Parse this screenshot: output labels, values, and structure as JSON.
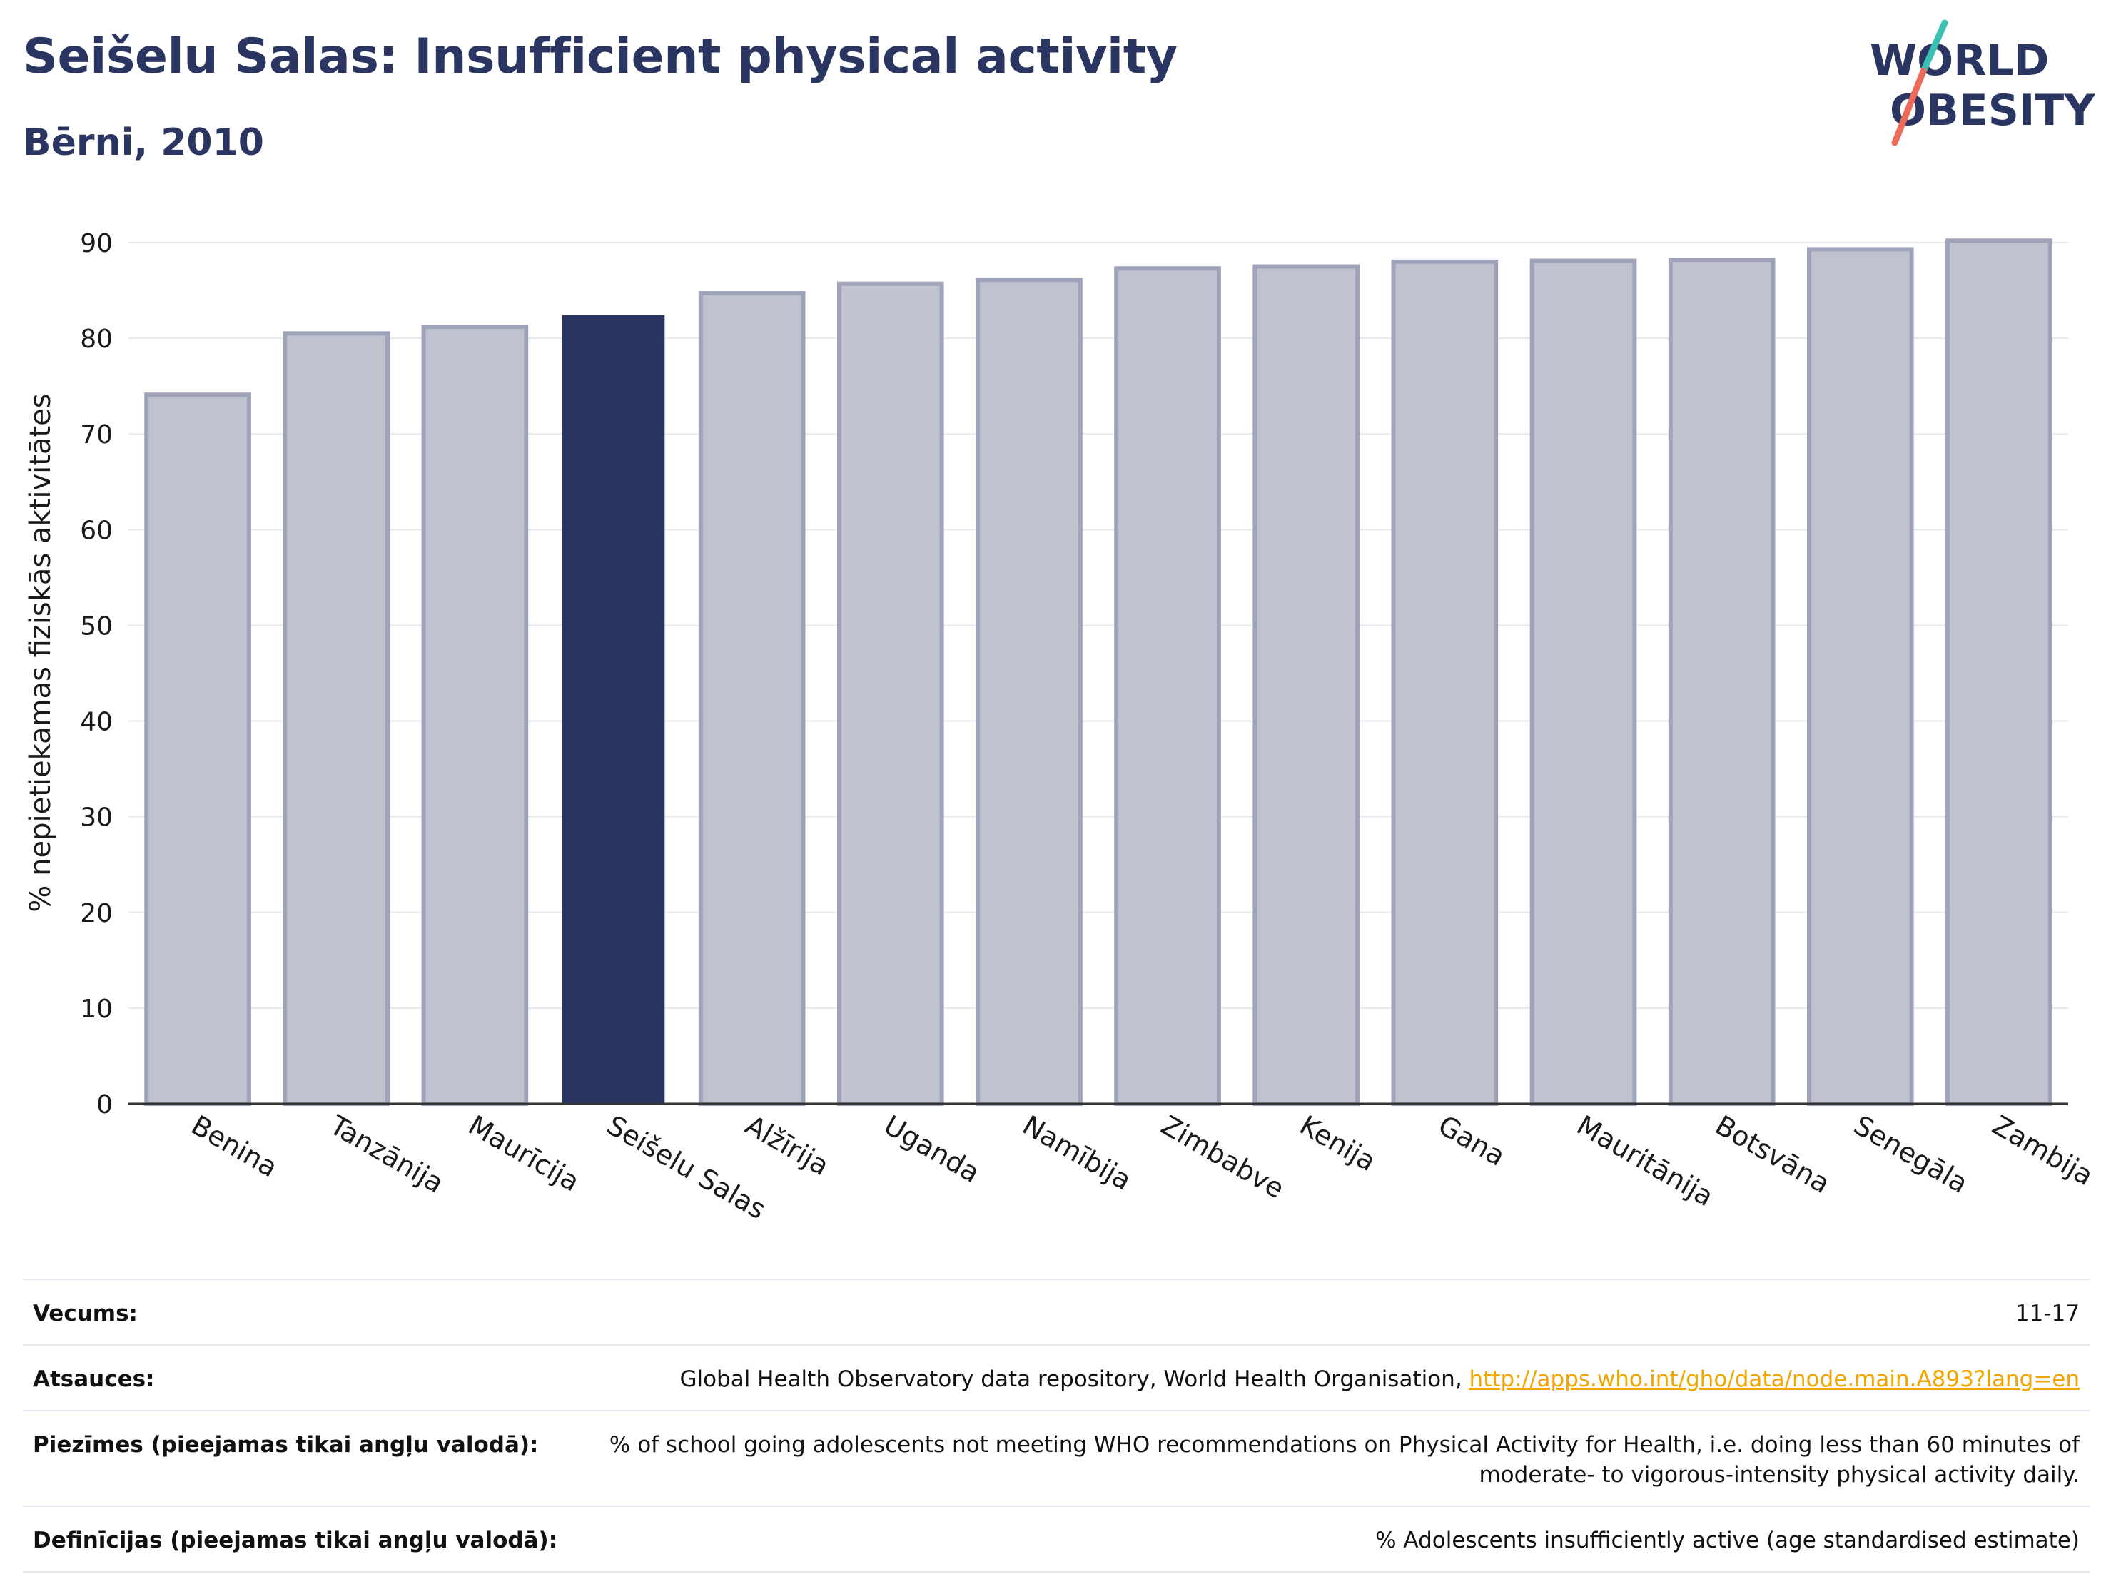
{
  "header": {
    "title": "Seišelu Salas: Insufficient physical activity",
    "subtitle": "Bērni, 2010",
    "logo_line1": "WORLD",
    "logo_line2": "OBESITY"
  },
  "colors": {
    "highlight": "#2a3561",
    "bar_fill": "#bfc2cf",
    "bar_stroke": "#9ea3ba",
    "logo_teal": "#3bbfb2",
    "logo_coral": "#ec6a5a",
    "link": "#f0a500"
  },
  "chart_data": {
    "type": "bar",
    "title": "Seišelu Salas: Insufficient physical activity",
    "subtitle": "Bērni, 2010",
    "ylabel": "% nepietiekamas fiziskās aktivitātes",
    "xlabel": "",
    "ylim": [
      0,
      90
    ],
    "yticks": [
      0,
      10,
      20,
      30,
      40,
      50,
      60,
      70,
      80,
      90
    ],
    "grid": true,
    "highlight": "Seišelu Salas",
    "categories": [
      "Benina",
      "Tanzānija",
      "Maurīcija",
      "Seišelu Salas",
      "Alžīrija",
      "Uganda",
      "Namībija",
      "Zimbabve",
      "Kenija",
      "Gana",
      "Mauritānija",
      "Botsvāna",
      "Senegāla",
      "Zambija"
    ],
    "values": [
      74.1,
      80.5,
      81.2,
      82.4,
      84.7,
      85.7,
      86.1,
      87.3,
      87.5,
      88.0,
      88.1,
      88.2,
      89.3,
      90.2
    ]
  },
  "footer": {
    "rows": [
      {
        "label": "Vecums:",
        "value": "11-17"
      },
      {
        "label": "Atsauces:",
        "value": "Global Health Observatory data repository, World Health Organisation, ",
        "link": "http://apps.who.int/gho/data/node.main.A893?lang=en"
      },
      {
        "label": "Piezīmes (pieejamas tikai angļu valodā):",
        "value": "% of school going adolescents not meeting WHO recommendations on Physical Activity for Health, i.e. doing less than 60 minutes of moderate- to vigorous-intensity physical activity daily."
      },
      {
        "label": "Definīcijas (pieejamas tikai angļu valodā):",
        "value": "% Adolescents insufficiently active (age standardised estimate)"
      }
    ]
  }
}
